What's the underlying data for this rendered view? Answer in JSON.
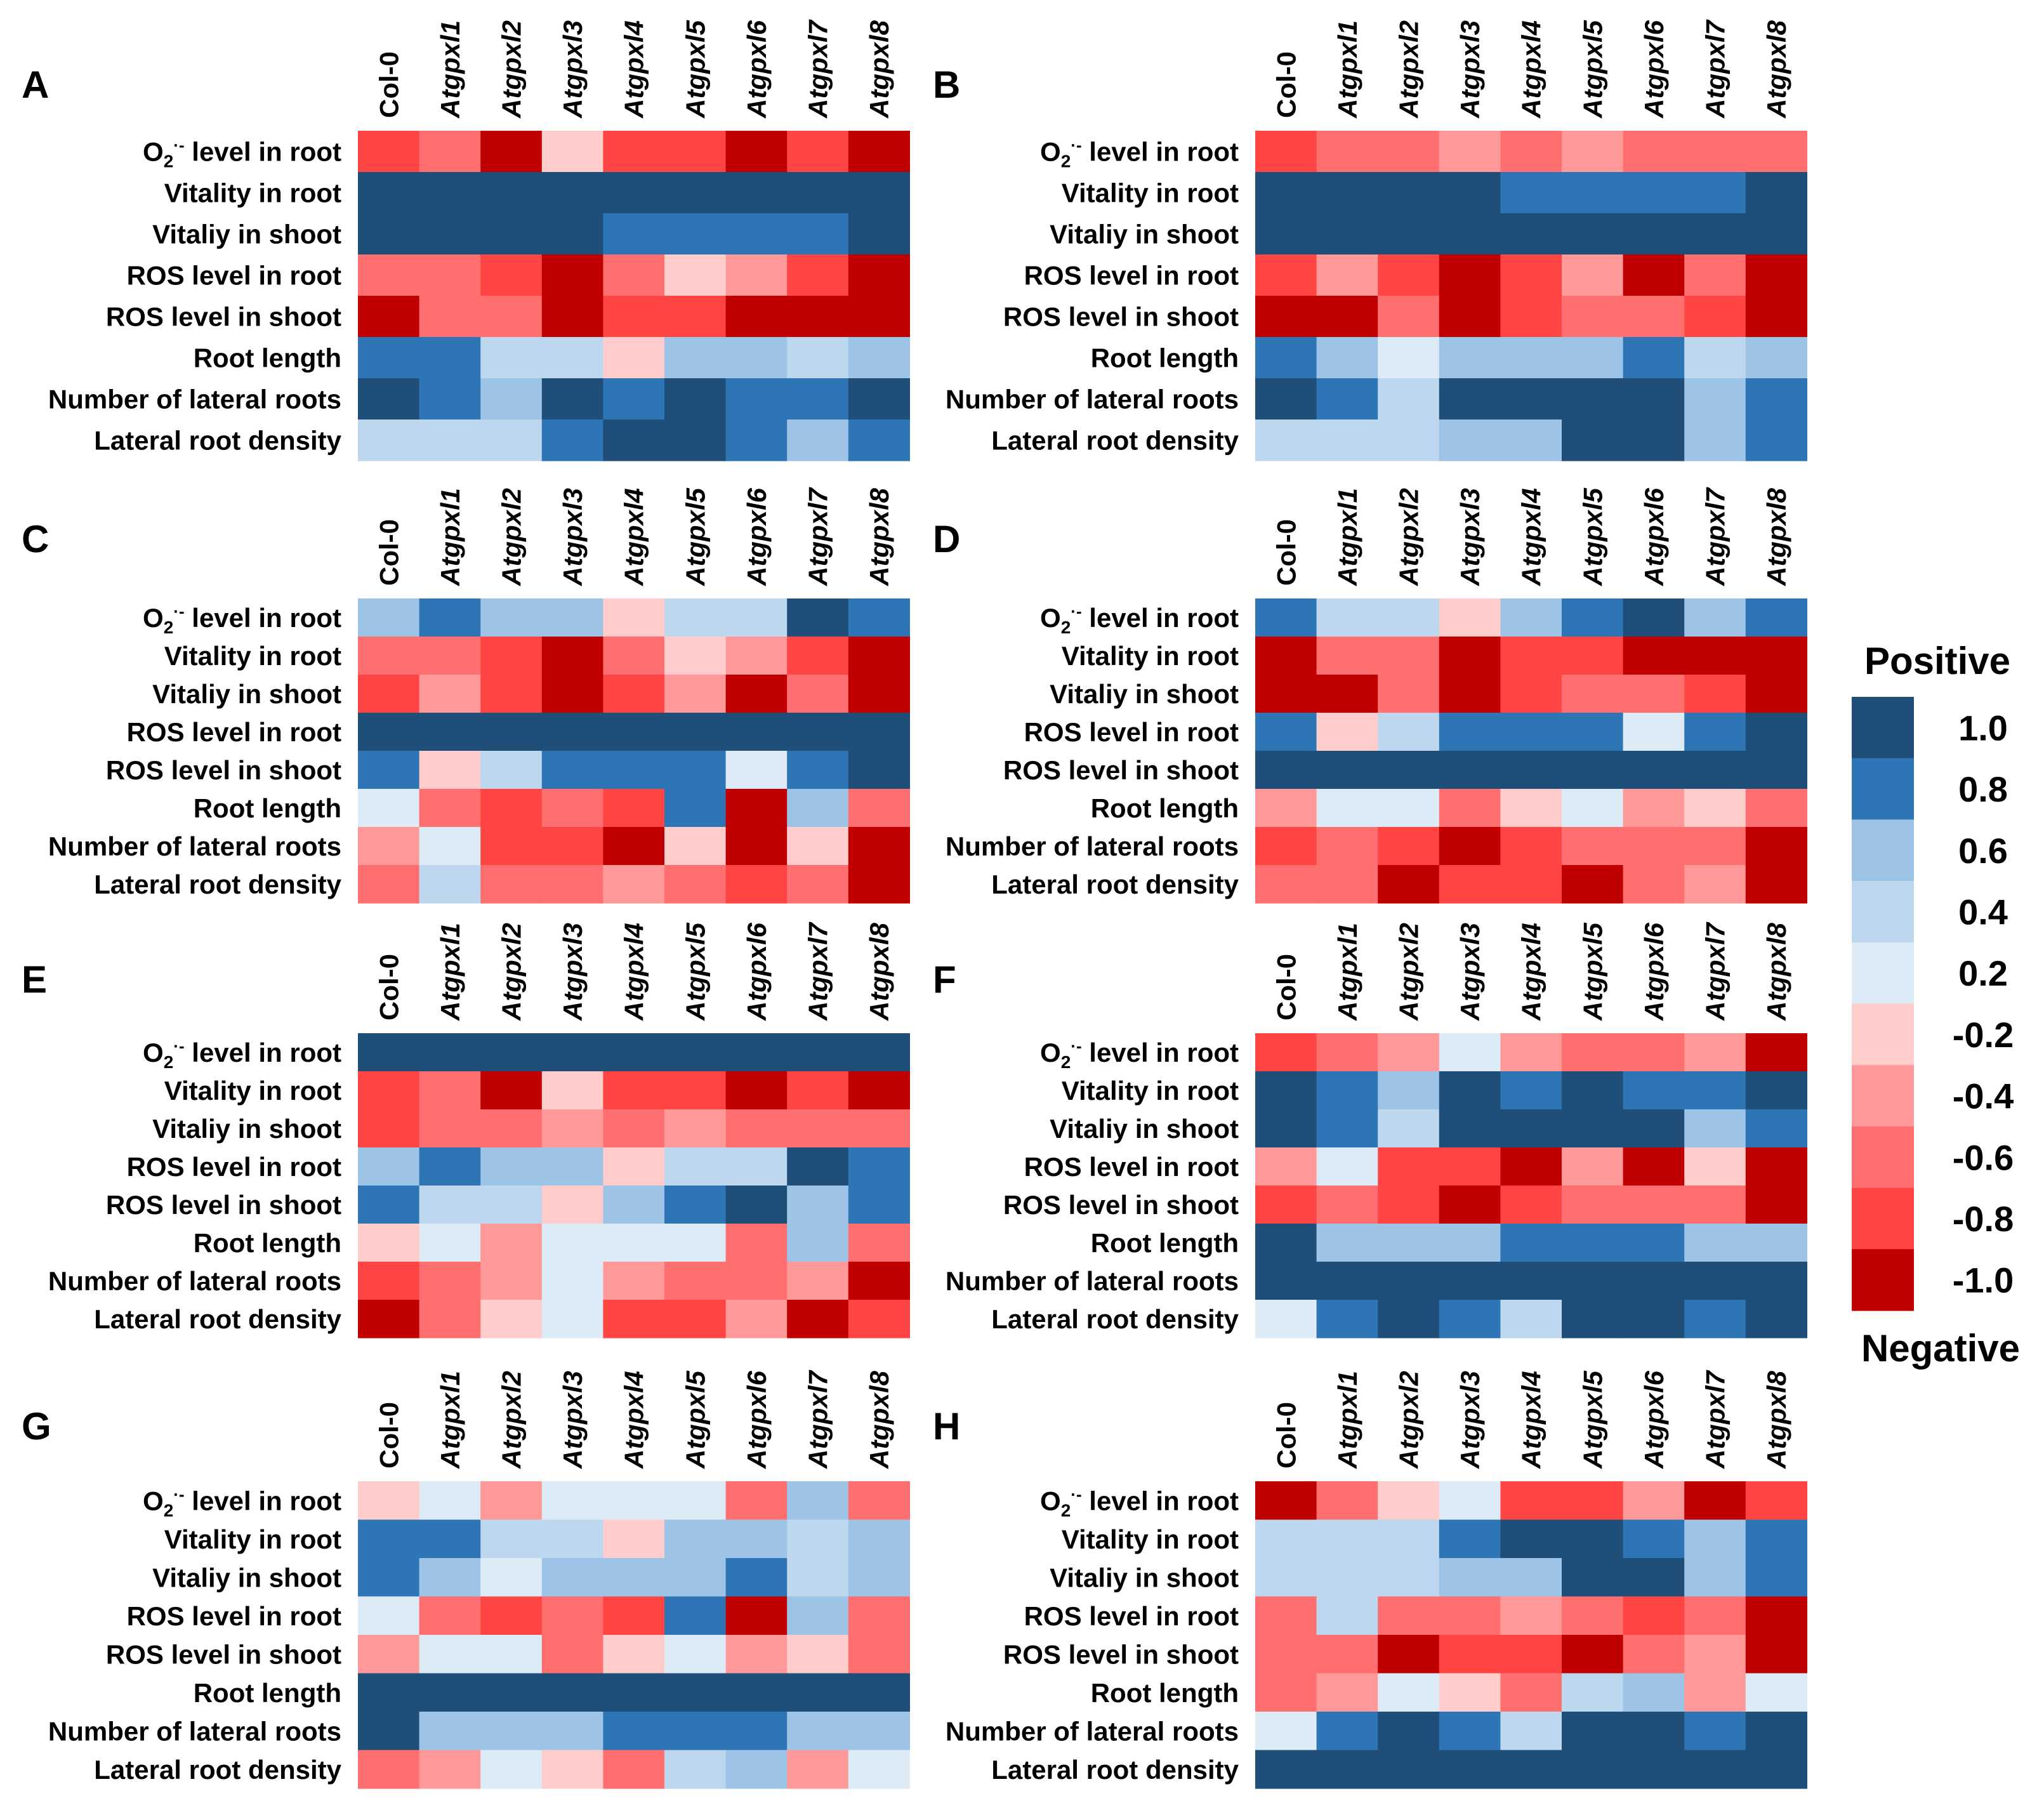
{
  "figure": {
    "legend": {
      "title_top": "Positive",
      "title_bottom": "Negative",
      "levels": [
        {
          "label": "1.0",
          "color": "#1f4e79"
        },
        {
          "label": "0.8",
          "color": "#2e75b6"
        },
        {
          "label": "0.6",
          "color": "#9dc3e6"
        },
        {
          "label": "0.4",
          "color": "#bdd7ee"
        },
        {
          "label": "0.2",
          "color": "#ddebf7"
        },
        {
          "label": "-0.2",
          "color": "#ffcccc"
        },
        {
          "label": "-0.4",
          "color": "#ff9999"
        },
        {
          "label": "-0.6",
          "color": "#ff6f6f"
        },
        {
          "label": "-0.8",
          "color": "#ff4444"
        },
        {
          "label": "-1.0",
          "color": "#c00000"
        }
      ]
    }
  },
  "chart_data": [
    {
      "type": "heatmap",
      "panel": "A",
      "columns": [
        "Col-0",
        "Atgpxl1",
        "Atgpxl2",
        "Atgpxl3",
        "Atgpxl4",
        "Atgpxl5",
        "Atgpxl6",
        "Atgpxl7",
        "Atgpxl8"
      ],
      "rows": [
        {
          "pre": "O",
          "sub": "2",
          "sup": "·-",
          "post": " level in root"
        },
        "Vitality in root",
        "Vitaliy in shoot",
        "ROS level in root",
        "ROS level in shoot",
        "Root length",
        "Number of lateral roots",
        "Lateral root density"
      ],
      "values": [
        [
          -0.8,
          -0.6,
          -1.0,
          -0.2,
          -0.8,
          -0.8,
          -1.0,
          -0.8,
          -1.0
        ],
        [
          1.0,
          1.0,
          1.0,
          1.0,
          1.0,
          1.0,
          1.0,
          1.0,
          1.0
        ],
        [
          1.0,
          1.0,
          1.0,
          1.0,
          0.8,
          0.8,
          0.8,
          0.8,
          1.0
        ],
        [
          -0.6,
          -0.6,
          -0.8,
          -1.0,
          -0.6,
          -0.2,
          -0.4,
          -0.8,
          -1.0
        ],
        [
          -1.0,
          -0.6,
          -0.6,
          -1.0,
          -0.8,
          -0.8,
          -1.0,
          -1.0,
          -1.0
        ],
        [
          0.8,
          0.8,
          0.4,
          0.4,
          -0.2,
          0.6,
          0.6,
          0.4,
          0.6
        ],
        [
          1.0,
          0.8,
          0.6,
          1.0,
          0.8,
          1.0,
          0.8,
          0.8,
          1.0
        ],
        [
          0.4,
          0.4,
          0.4,
          0.8,
          1.0,
          1.0,
          0.8,
          0.6,
          0.8
        ]
      ]
    },
    {
      "type": "heatmap",
      "panel": "B",
      "columns": [
        "Col-0",
        "Atgpxl1",
        "Atgpxl2",
        "Atgpxl3",
        "Atgpxl4",
        "Atgpxl5",
        "Atgpxl6",
        "Atgpxl7",
        "Atgpxl8"
      ],
      "rows": [
        {
          "pre": "O",
          "sub": "2",
          "sup": "·-",
          "post": " level in root"
        },
        "Vitality in root",
        "Vitaliy in shoot",
        "ROS level in root",
        "ROS level in shoot",
        "Root length",
        "Number of lateral roots",
        "Lateral root density"
      ],
      "values": [
        [
          -0.8,
          -0.6,
          -0.6,
          -0.4,
          -0.6,
          -0.4,
          -0.6,
          -0.6,
          -0.6
        ],
        [
          1.0,
          1.0,
          1.0,
          1.0,
          0.8,
          0.8,
          0.8,
          0.8,
          1.0
        ],
        [
          1.0,
          1.0,
          1.0,
          1.0,
          1.0,
          1.0,
          1.0,
          1.0,
          1.0
        ],
        [
          -0.8,
          -0.4,
          -0.8,
          -1.0,
          -0.8,
          -0.4,
          -1.0,
          -0.6,
          -1.0
        ],
        [
          -1.0,
          -1.0,
          -0.6,
          -1.0,
          -0.8,
          -0.6,
          -0.6,
          -0.8,
          -1.0
        ],
        [
          0.8,
          0.6,
          0.2,
          0.6,
          0.6,
          0.6,
          0.8,
          0.4,
          0.6
        ],
        [
          1.0,
          0.8,
          0.4,
          1.0,
          1.0,
          1.0,
          1.0,
          0.6,
          0.8
        ],
        [
          0.4,
          0.4,
          0.4,
          0.6,
          0.6,
          1.0,
          1.0,
          0.6,
          0.8
        ]
      ]
    },
    {
      "type": "heatmap",
      "panel": "C",
      "columns": [
        "Col-0",
        "Atgpxl1",
        "Atgpxl2",
        "Atgpxl3",
        "Atgpxl4",
        "Atgpxl5",
        "Atgpxl6",
        "Atgpxl7",
        "Atgpxl8"
      ],
      "rows": [
        {
          "pre": "O",
          "sub": "2",
          "sup": "·-",
          "post": " level in root"
        },
        "Vitality in root",
        "Vitaliy in shoot",
        "ROS level in root",
        "ROS level in shoot",
        "Root length",
        "Number of lateral roots",
        "Lateral root density"
      ],
      "values": [
        [
          0.6,
          0.8,
          0.6,
          0.6,
          -0.2,
          0.4,
          0.4,
          1.0,
          0.8
        ],
        [
          -0.6,
          -0.6,
          -0.8,
          -1.0,
          -0.6,
          -0.2,
          -0.4,
          -0.8,
          -1.0
        ],
        [
          -0.8,
          -0.4,
          -0.8,
          -1.0,
          -0.8,
          -0.4,
          -1.0,
          -0.6,
          -1.0
        ],
        [
          1.0,
          1.0,
          1.0,
          1.0,
          1.0,
          1.0,
          1.0,
          1.0,
          1.0
        ],
        [
          0.8,
          -0.2,
          0.4,
          0.8,
          0.8,
          0.8,
          0.2,
          0.8,
          1.0
        ],
        [
          0.2,
          -0.6,
          -0.8,
          -0.6,
          -0.8,
          0.8,
          -1.0,
          0.6,
          -0.6
        ],
        [
          -0.4,
          0.2,
          -0.8,
          -0.8,
          -1.0,
          -0.2,
          -1.0,
          -0.2,
          -1.0
        ],
        [
          -0.6,
          0.4,
          -0.6,
          -0.6,
          -0.4,
          -0.6,
          -0.8,
          -0.6,
          -1.0
        ]
      ]
    },
    {
      "type": "heatmap",
      "panel": "D",
      "columns": [
        "Col-0",
        "Atgpxl1",
        "Atgpxl2",
        "Atgpxl3",
        "Atgpxl4",
        "Atgpxl5",
        "Atgpxl6",
        "Atgpxl7",
        "Atgpxl8"
      ],
      "rows": [
        {
          "pre": "O",
          "sub": "2",
          "sup": "·-",
          "post": " level in root"
        },
        "Vitality in root",
        "Vitaliy in shoot",
        "ROS level in root",
        "ROS level in shoot",
        "Root length",
        "Number of lateral roots",
        "Lateral root density"
      ],
      "values": [
        [
          0.8,
          0.4,
          0.4,
          -0.2,
          0.6,
          0.8,
          1.0,
          0.6,
          0.8
        ],
        [
          -1.0,
          -0.6,
          -0.6,
          -1.0,
          -0.8,
          -0.8,
          -1.0,
          -1.0,
          -1.0
        ],
        [
          -1.0,
          -1.0,
          -0.6,
          -1.0,
          -0.8,
          -0.6,
          -0.6,
          -0.8,
          -1.0
        ],
        [
          0.8,
          -0.2,
          0.4,
          0.8,
          0.8,
          0.8,
          0.2,
          0.8,
          1.0
        ],
        [
          1.0,
          1.0,
          1.0,
          1.0,
          1.0,
          1.0,
          1.0,
          1.0,
          1.0
        ],
        [
          -0.4,
          0.2,
          0.2,
          -0.6,
          -0.2,
          0.2,
          -0.4,
          -0.2,
          -0.6
        ],
        [
          -0.8,
          -0.6,
          -0.8,
          -1.0,
          -0.8,
          -0.6,
          -0.6,
          -0.6,
          -1.0
        ],
        [
          -0.6,
          -0.6,
          -1.0,
          -0.8,
          -0.8,
          -1.0,
          -0.6,
          -0.4,
          -1.0
        ]
      ]
    },
    {
      "type": "heatmap",
      "panel": "E",
      "columns": [
        "Col-0",
        "Atgpxl1",
        "Atgpxl2",
        "Atgpxl3",
        "Atgpxl4",
        "Atgpxl5",
        "Atgpxl6",
        "Atgpxl7",
        "Atgpxl8"
      ],
      "rows": [
        {
          "pre": "O",
          "sub": "2",
          "sup": "·-",
          "post": " level in root"
        },
        "Vitality in root",
        "Vitaliy in shoot",
        "ROS level in root",
        "ROS level in shoot",
        "Root length",
        "Number of lateral roots",
        "Lateral root density"
      ],
      "values": [
        [
          1.0,
          1.0,
          1.0,
          1.0,
          1.0,
          1.0,
          1.0,
          1.0,
          1.0
        ],
        [
          -0.8,
          -0.6,
          -1.0,
          -0.2,
          -0.8,
          -0.8,
          -1.0,
          -0.8,
          -1.0
        ],
        [
          -0.8,
          -0.6,
          -0.6,
          -0.4,
          -0.6,
          -0.4,
          -0.6,
          -0.6,
          -0.6
        ],
        [
          0.6,
          0.8,
          0.6,
          0.6,
          -0.2,
          0.4,
          0.4,
          1.0,
          0.8
        ],
        [
          0.8,
          0.4,
          0.4,
          -0.2,
          0.6,
          0.8,
          1.0,
          0.6,
          0.8
        ],
        [
          -0.2,
          0.2,
          -0.4,
          0.2,
          0.2,
          0.2,
          -0.6,
          0.6,
          -0.6
        ],
        [
          -0.8,
          -0.6,
          -0.4,
          0.2,
          -0.4,
          -0.6,
          -0.6,
          -0.4,
          -1.0
        ],
        [
          -1.0,
          -0.6,
          -0.2,
          0.2,
          -0.8,
          -0.8,
          -0.4,
          -1.0,
          -0.8
        ]
      ]
    },
    {
      "type": "heatmap",
      "panel": "F",
      "columns": [
        "Col-0",
        "Atgpxl1",
        "Atgpxl2",
        "Atgpxl3",
        "Atgpxl4",
        "Atgpxl5",
        "Atgpxl6",
        "Atgpxl7",
        "Atgpxl8"
      ],
      "rows": [
        {
          "pre": "O",
          "sub": "2",
          "sup": "·-",
          "post": " level in root"
        },
        "Vitality in root",
        "Vitaliy in shoot",
        "ROS level in root",
        "ROS level in shoot",
        "Root length",
        "Number of lateral roots",
        "Lateral root density"
      ],
      "values": [
        [
          -0.8,
          -0.6,
          -0.4,
          0.2,
          -0.4,
          -0.6,
          -0.6,
          -0.4,
          -1.0
        ],
        [
          1.0,
          0.8,
          0.6,
          1.0,
          0.8,
          1.0,
          0.8,
          0.8,
          1.0
        ],
        [
          1.0,
          0.8,
          0.4,
          1.0,
          1.0,
          1.0,
          1.0,
          0.6,
          0.8
        ],
        [
          -0.4,
          0.2,
          -0.8,
          -0.8,
          -1.0,
          -0.4,
          -1.0,
          -0.2,
          -1.0
        ],
        [
          -0.8,
          -0.6,
          -0.8,
          -1.0,
          -0.8,
          -0.6,
          -0.6,
          -0.6,
          -1.0
        ],
        [
          1.0,
          0.6,
          0.6,
          0.6,
          0.8,
          0.8,
          0.8,
          0.6,
          0.6
        ],
        [
          1.0,
          1.0,
          1.0,
          1.0,
          1.0,
          1.0,
          1.0,
          1.0,
          1.0
        ],
        [
          0.2,
          0.8,
          1.0,
          0.8,
          0.4,
          1.0,
          1.0,
          0.8,
          1.0
        ]
      ]
    },
    {
      "type": "heatmap",
      "panel": "G",
      "columns": [
        "Col-0",
        "Atgpxl1",
        "Atgpxl2",
        "Atgpxl3",
        "Atgpxl4",
        "Atgpxl5",
        "Atgpxl6",
        "Atgpxl7",
        "Atgpxl8"
      ],
      "rows": [
        {
          "pre": "O",
          "sub": "2",
          "sup": "·-",
          "post": " level in root"
        },
        "Vitality in root",
        "Vitaliy in shoot",
        "ROS level in root",
        "ROS level in shoot",
        "Root length",
        "Number of lateral roots",
        "Lateral root density"
      ],
      "values": [
        [
          -0.2,
          0.2,
          -0.4,
          0.2,
          0.2,
          0.2,
          -0.6,
          0.6,
          -0.6
        ],
        [
          0.8,
          0.8,
          0.4,
          0.4,
          -0.2,
          0.6,
          0.6,
          0.4,
          0.6
        ],
        [
          0.8,
          0.6,
          0.2,
          0.6,
          0.6,
          0.6,
          0.8,
          0.4,
          0.6
        ],
        [
          0.2,
          -0.6,
          -0.8,
          -0.6,
          -0.8,
          0.8,
          -1.0,
          0.6,
          -0.6
        ],
        [
          -0.4,
          0.2,
          0.2,
          -0.6,
          -0.2,
          0.2,
          -0.4,
          -0.2,
          -0.6
        ],
        [
          1.0,
          1.0,
          1.0,
          1.0,
          1.0,
          1.0,
          1.0,
          1.0,
          1.0
        ],
        [
          1.0,
          0.6,
          0.6,
          0.6,
          0.8,
          0.8,
          0.8,
          0.6,
          0.6
        ],
        [
          -0.6,
          -0.4,
          0.2,
          -0.2,
          -0.6,
          0.4,
          0.6,
          -0.4,
          0.2
        ]
      ]
    },
    {
      "type": "heatmap",
      "panel": "H",
      "columns": [
        "Col-0",
        "Atgpxl1",
        "Atgpxl2",
        "Atgpxl3",
        "Atgpxl4",
        "Atgpxl5",
        "Atgpxl6",
        "Atgpxl7",
        "Atgpxl8"
      ],
      "rows": [
        {
          "pre": "O",
          "sub": "2",
          "sup": "·-",
          "post": " level in root"
        },
        "Vitality in root",
        "Vitaliy in shoot",
        "ROS level in root",
        "ROS level in shoot",
        "Root length",
        "Number of lateral roots",
        "Lateral root density"
      ],
      "values": [
        [
          -1.0,
          -0.6,
          -0.2,
          0.2,
          -0.8,
          -0.8,
          -0.4,
          -1.0,
          -0.8
        ],
        [
          0.4,
          0.4,
          0.4,
          0.8,
          1.0,
          1.0,
          0.8,
          0.6,
          0.8
        ],
        [
          0.4,
          0.4,
          0.4,
          0.6,
          0.6,
          1.0,
          1.0,
          0.6,
          0.8
        ],
        [
          -0.6,
          0.4,
          -0.6,
          -0.6,
          -0.4,
          -0.6,
          -0.8,
          -0.6,
          -1.0
        ],
        [
          -0.6,
          -0.6,
          -1.0,
          -0.8,
          -0.8,
          -1.0,
          -0.6,
          -0.4,
          -1.0
        ],
        [
          -0.6,
          -0.4,
          0.2,
          -0.2,
          -0.6,
          0.4,
          0.6,
          -0.4,
          0.2
        ],
        [
          0.2,
          0.8,
          1.0,
          0.8,
          0.4,
          1.0,
          1.0,
          0.8,
          1.0
        ],
        [
          1.0,
          1.0,
          1.0,
          1.0,
          1.0,
          1.0,
          1.0,
          1.0,
          1.0
        ]
      ]
    }
  ]
}
